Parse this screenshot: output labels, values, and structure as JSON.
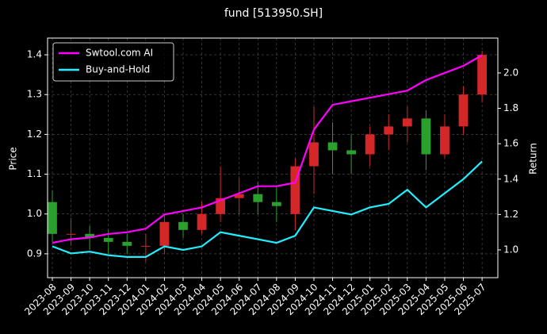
{
  "chart_data": {
    "type": "candlestick",
    "title": "fund [513950.SH]",
    "y_label": "Price",
    "y2_label": "Return",
    "categories": [
      "2023-08",
      "2023-09",
      "2023-10",
      "2023-11",
      "2023-12",
      "2024-01",
      "2024-02",
      "2024-03",
      "2024-04",
      "2024-05",
      "2024-06",
      "2024-07",
      "2024-08",
      "2024-09",
      "2024-10",
      "2024-11",
      "2024-12",
      "2025-01",
      "2025-02",
      "2025-03",
      "2025-04",
      "2025-05",
      "2025-06",
      "2025-07"
    ],
    "open": [
      1.03,
      0.95,
      0.95,
      0.94,
      0.93,
      0.92,
      0.92,
      0.98,
      0.96,
      1.0,
      1.04,
      1.05,
      1.03,
      1.0,
      1.12,
      1.18,
      1.16,
      1.15,
      1.2,
      1.22,
      1.24,
      1.15,
      1.22,
      1.3
    ],
    "close": [
      0.95,
      0.95,
      0.94,
      0.93,
      0.92,
      0.92,
      0.98,
      0.96,
      1.0,
      1.04,
      1.05,
      1.03,
      1.02,
      1.12,
      1.18,
      1.16,
      1.15,
      1.2,
      1.22,
      1.24,
      1.15,
      1.22,
      1.3,
      1.4
    ],
    "high": [
      1.06,
      0.99,
      0.97,
      0.96,
      0.95,
      0.95,
      1.0,
      1.0,
      1.03,
      1.12,
      1.09,
      1.08,
      1.07,
      1.14,
      1.27,
      1.23,
      1.2,
      1.22,
      1.25,
      1.27,
      1.26,
      1.25,
      1.32,
      1.41
    ],
    "low": [
      0.93,
      0.92,
      0.91,
      0.9,
      0.9,
      0.88,
      0.9,
      0.94,
      0.95,
      0.98,
      1.0,
      1.0,
      0.98,
      0.96,
      1.05,
      1.1,
      1.1,
      1.12,
      1.16,
      1.18,
      1.11,
      1.14,
      1.2,
      1.28
    ],
    "up_color": "#d62728",
    "down_color": "#2ca02c",
    "series": [
      {
        "name": "Swtool.com AI",
        "color": "#ff00ff",
        "axis": "y2",
        "values": [
          1.04,
          1.06,
          1.07,
          1.09,
          1.1,
          1.12,
          1.2,
          1.22,
          1.24,
          1.28,
          1.32,
          1.36,
          1.36,
          1.38,
          1.68,
          1.82,
          1.84,
          1.86,
          1.88,
          1.9,
          1.96,
          2.0,
          2.04,
          2.1
        ]
      },
      {
        "name": "Buy-and-Hold",
        "color": "#22eeff",
        "axis": "y2",
        "values": [
          1.02,
          0.98,
          0.99,
          0.97,
          0.96,
          0.96,
          1.02,
          1.0,
          1.02,
          1.1,
          1.08,
          1.06,
          1.04,
          1.08,
          1.24,
          1.22,
          1.2,
          1.24,
          1.26,
          1.34,
          1.24,
          1.32,
          1.4,
          1.5
        ]
      }
    ],
    "ylim": [
      0.84,
      1.442
    ],
    "yticks": [
      0.9,
      {
        "value": 1,
        "label": "1.0"
      },
      1.1,
      1.2,
      1.3,
      1.4
    ],
    "y2lim": [
      0.843,
      2.197
    ],
    "y2ticks": [
      {
        "value": 1,
        "label": "1.0"
      },
      1.2,
      1.4,
      1.6,
      1.8,
      {
        "value": 2,
        "label": "2.0"
      }
    ],
    "grid": true,
    "legend": "upper left"
  }
}
